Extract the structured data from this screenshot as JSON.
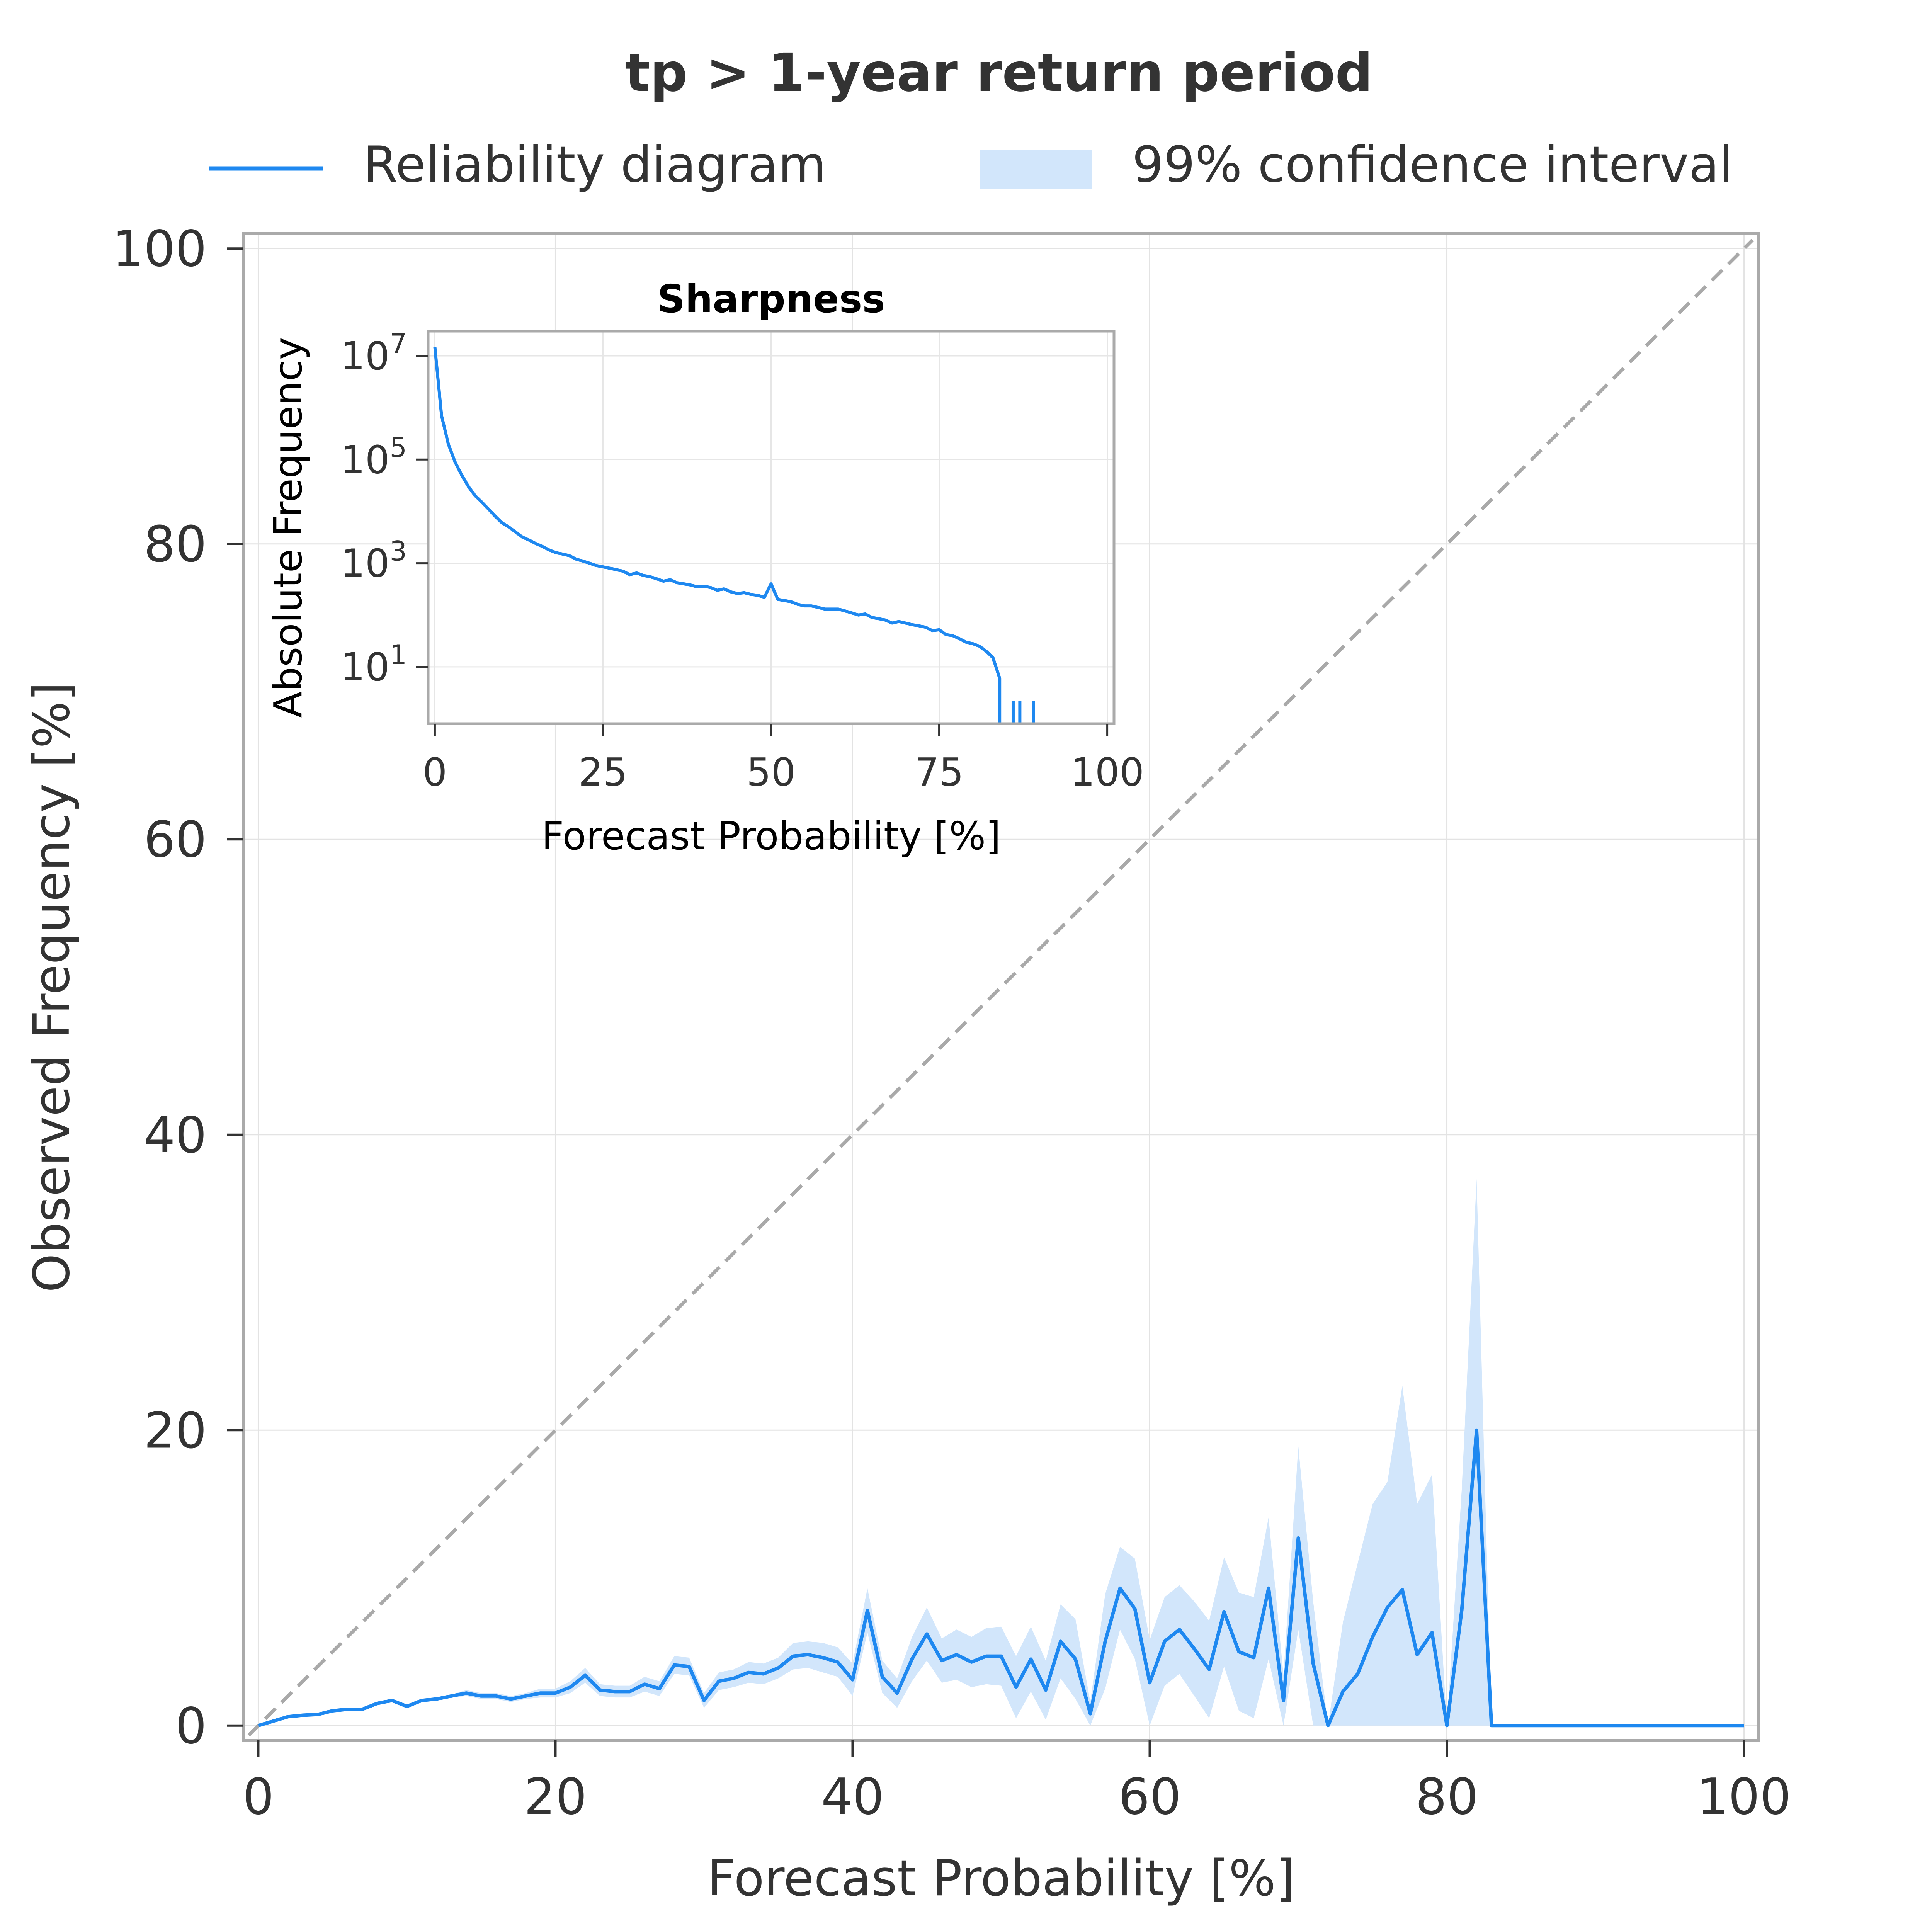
{
  "chart_data": [
    {
      "type": "line",
      "title": "tp > 1-year return period",
      "xlabel": "Forecast Probability [%]",
      "ylabel": "Observed Frequency [%]",
      "xlim": [
        -1,
        101
      ],
      "ylim": [
        -1,
        101
      ],
      "xticks": [
        0,
        20,
        40,
        60,
        80,
        100
      ],
      "yticks": [
        0,
        20,
        40,
        60,
        80,
        100
      ],
      "grid": true,
      "legend": {
        "placement": "top, outside plot",
        "entries": [
          "Reliability diagram",
          "99% confidence interval"
        ]
      },
      "colors": {
        "line": "#1e88f0",
        "band": "#d2e6fb",
        "diagonal": "#a9a9a9",
        "frame": "#aaaaaa",
        "text": "#333333"
      },
      "reference_line": {
        "name": "perfect reliability",
        "x": [
          0,
          100
        ],
        "y": [
          0,
          100
        ],
        "style": "dashed"
      },
      "series": [
        {
          "name": "Reliability diagram",
          "x": [
            0,
            1,
            2,
            3,
            4,
            5,
            6,
            7,
            8,
            9,
            10,
            11,
            12,
            13,
            14,
            15,
            16,
            17,
            18,
            19,
            20,
            21,
            22,
            23,
            24,
            25,
            26,
            27,
            28,
            29,
            30,
            31,
            32,
            33,
            34,
            35,
            36,
            37,
            38,
            39,
            40,
            41,
            42,
            43,
            44,
            45,
            46,
            47,
            48,
            49,
            50,
            51,
            52,
            53,
            54,
            55,
            56,
            57,
            58,
            59,
            60,
            61,
            62,
            63,
            64,
            65,
            66,
            67,
            68,
            69,
            70,
            71,
            72,
            73,
            74,
            75,
            76,
            77,
            78,
            79,
            80,
            81,
            82,
            83,
            84,
            85,
            86,
            87,
            88,
            89,
            90,
            91,
            92,
            93,
            94,
            95,
            96,
            97,
            98,
            99,
            100
          ],
          "y": [
            0.0,
            0.3,
            0.6,
            0.7,
            0.75,
            1.0,
            1.1,
            1.1,
            1.5,
            1.7,
            1.3,
            1.7,
            1.8,
            2.0,
            2.2,
            2.0,
            2.0,
            1.8,
            2.0,
            2.2,
            2.2,
            2.6,
            3.4,
            2.4,
            2.3,
            2.3,
            2.8,
            2.5,
            4.1,
            4.0,
            1.7,
            3.0,
            3.2,
            3.6,
            3.5,
            3.9,
            4.7,
            4.8,
            4.6,
            4.3,
            3.1,
            7.8,
            3.3,
            2.2,
            4.5,
            6.2,
            4.4,
            4.8,
            4.3,
            4.7,
            4.7,
            2.6,
            4.5,
            2.4,
            5.7,
            4.5,
            0.8,
            5.7,
            9.3,
            7.9,
            2.9,
            5.7,
            6.5,
            5.2,
            3.8,
            7.7,
            5.0,
            4.6,
            9.3,
            1.7,
            12.7,
            4.2,
            0.0,
            2.3,
            3.5,
            6.0,
            8.0,
            9.2,
            4.8,
            6.3,
            0.0,
            7.8,
            20.0,
            0.0,
            0.0,
            0.0,
            0.0,
            0.0,
            0.0,
            0.0,
            0.0,
            0.0,
            0.0,
            0.0,
            0.0,
            0.0,
            0.0,
            0.0,
            0.0,
            0.0,
            0.0
          ]
        },
        {
          "name": "99% confidence interval",
          "x": [
            0,
            1,
            2,
            3,
            4,
            5,
            6,
            7,
            8,
            9,
            10,
            11,
            12,
            13,
            14,
            15,
            16,
            17,
            18,
            19,
            20,
            21,
            22,
            23,
            24,
            25,
            26,
            27,
            28,
            29,
            30,
            31,
            32,
            33,
            34,
            35,
            36,
            37,
            38,
            39,
            40,
            41,
            42,
            43,
            44,
            45,
            46,
            47,
            48,
            49,
            50,
            51,
            52,
            53,
            54,
            55,
            56,
            57,
            58,
            59,
            60,
            61,
            62,
            63,
            64,
            65,
            66,
            67,
            68,
            69,
            70,
            71,
            72,
            73,
            74,
            75,
            76,
            77,
            78,
            79,
            80,
            81,
            82,
            83
          ],
          "lower": [
            0.0,
            0.3,
            0.6,
            0.7,
            0.75,
            1.0,
            1.1,
            1.1,
            1.4,
            1.6,
            1.2,
            1.6,
            1.7,
            1.9,
            2.0,
            1.8,
            1.8,
            1.6,
            1.8,
            1.9,
            1.9,
            2.2,
            2.9,
            2.0,
            1.9,
            1.9,
            2.3,
            2.0,
            3.5,
            3.4,
            1.2,
            2.4,
            2.6,
            2.9,
            2.8,
            3.2,
            3.8,
            3.9,
            3.6,
            3.3,
            2.0,
            6.3,
            2.2,
            1.2,
            3.0,
            4.4,
            2.9,
            3.1,
            2.6,
            2.8,
            2.7,
            0.5,
            2.3,
            0.4,
            3.2,
            1.8,
            0.0,
            2.5,
            6.5,
            4.5,
            0.0,
            2.7,
            3.5,
            2.0,
            0.5,
            4.0,
            1.0,
            0.5,
            4.5,
            0.0,
            6.5,
            0.0,
            0.0,
            0.0,
            0.0,
            0.0,
            0.0,
            0.0,
            0.0,
            0.0,
            0.0,
            0.0,
            0.0,
            0.0
          ],
          "upper": [
            0.0,
            0.3,
            0.6,
            0.7,
            0.75,
            1.0,
            1.1,
            1.1,
            1.6,
            1.8,
            1.4,
            1.8,
            1.9,
            2.1,
            2.4,
            2.2,
            2.2,
            2.0,
            2.2,
            2.5,
            2.5,
            3.0,
            3.9,
            2.8,
            2.7,
            2.7,
            3.3,
            3.0,
            4.7,
            4.6,
            2.2,
            3.6,
            3.8,
            4.3,
            4.2,
            4.6,
            5.6,
            5.7,
            5.6,
            5.3,
            4.2,
            9.3,
            4.4,
            3.2,
            6.0,
            8.0,
            5.9,
            6.5,
            6.0,
            6.6,
            6.7,
            4.7,
            6.7,
            4.4,
            8.2,
            7.2,
            1.6,
            8.9,
            12.1,
            11.3,
            5.8,
            8.7,
            9.5,
            8.4,
            7.1,
            11.4,
            9.0,
            8.7,
            14.1,
            3.4,
            18.9,
            8.4,
            0.0,
            7.0,
            11.0,
            15.0,
            16.5,
            23.0,
            15.0,
            17.0,
            0.0,
            16.0,
            37.0,
            0.0
          ]
        }
      ]
    },
    {
      "type": "line",
      "title": "Sharpness",
      "xlabel": "Forecast Probability [%]",
      "ylabel": "Absolute Frequency",
      "xlim": [
        -1,
        101
      ],
      "ylim": [
        0.8,
        30000000
      ],
      "yscale": "log",
      "xticks": [
        0,
        25,
        50,
        75,
        100
      ],
      "yticks": [
        {
          "value": 10,
          "base": "10",
          "exponent": "1"
        },
        {
          "value": 1000,
          "base": "10",
          "exponent": "3"
        },
        {
          "value": 100000,
          "base": "10",
          "exponent": "5"
        },
        {
          "value": 10000000,
          "base": "10",
          "exponent": "7"
        }
      ],
      "grid": true,
      "colors": {
        "line": "#1e88f0",
        "frame": "#aaaaaa",
        "title": "#000000"
      },
      "series": [
        {
          "name": "",
          "x": [
            0,
            1,
            2,
            3,
            4,
            5,
            6,
            7,
            8,
            9,
            10,
            11,
            12,
            13,
            14,
            15,
            16,
            17,
            18,
            19,
            20,
            21,
            22,
            23,
            24,
            25,
            26,
            27,
            28,
            29,
            30,
            31,
            32,
            33,
            34,
            35,
            36,
            37,
            38,
            39,
            40,
            41,
            42,
            43,
            44,
            45,
            46,
            47,
            48,
            49,
            50,
            51,
            52,
            53,
            54,
            55,
            56,
            57,
            58,
            59,
            60,
            61,
            62,
            63,
            64,
            65,
            66,
            67,
            68,
            69,
            70,
            71,
            72,
            73,
            74,
            75,
            76,
            77,
            78,
            79,
            80,
            81,
            82,
            83,
            84
          ],
          "y": [
            15000000,
            700000,
            200000,
            90000,
            50000,
            30000,
            20000,
            15000,
            11000,
            8000,
            6000,
            5000,
            4000,
            3200,
            2800,
            2400,
            2100,
            1800,
            1600,
            1500,
            1400,
            1200,
            1100,
            1000,
            900,
            850,
            800,
            750,
            700,
            600,
            650,
            580,
            550,
            500,
            450,
            480,
            420,
            400,
            380,
            350,
            360,
            340,
            300,
            320,
            280,
            260,
            270,
            250,
            240,
            220,
            400,
            200,
            190,
            180,
            160,
            150,
            150,
            140,
            130,
            130,
            130,
            120,
            110,
            100,
            105,
            90,
            85,
            80,
            70,
            75,
            70,
            65,
            62,
            58,
            50,
            52,
            42,
            40,
            35,
            30,
            28,
            25,
            20,
            15,
            6
          ]
        },
        {
          "name": "",
          "x": [
            86,
            87,
            89
          ],
          "y": [
            1,
            1,
            1
          ]
        }
      ]
    }
  ]
}
